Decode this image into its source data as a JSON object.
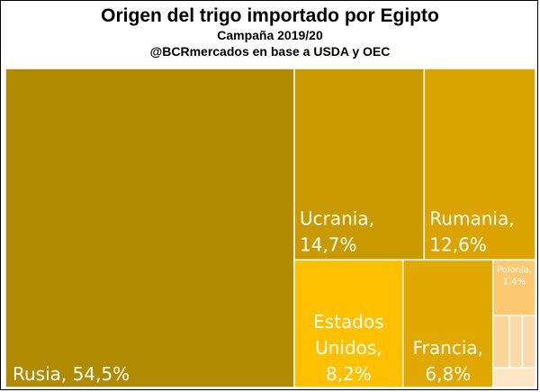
{
  "header": {
    "title": "Origen del trigo importado por Egipto",
    "subtitle": "Campaña 2019/20",
    "source": "@BCRmercados en base a USDA y OEC"
  },
  "chart_data": {
    "type": "treemap",
    "title": "Origen del trigo importado por Egipto",
    "subtitle": "Campaña 2019/20",
    "unit": "%",
    "items": [
      {
        "name": "Rusia",
        "value": 54.5,
        "lines": [
          "Rusia, 54,5%"
        ],
        "color": "#b08a00"
      },
      {
        "name": "Ucrania",
        "value": 14.7,
        "lines": [
          "Ucrania,",
          "14,7%"
        ],
        "color": "#c99a00"
      },
      {
        "name": "Rumania",
        "value": 12.6,
        "lines": [
          "Rumania,",
          "12,6%"
        ],
        "color": "#daa300"
      },
      {
        "name": "Estados Unidos",
        "value": 8.2,
        "lines": [
          "Estados",
          "Unidos,",
          "8,2%"
        ],
        "color": "#ffc000"
      },
      {
        "name": "Francia",
        "value": 6.8,
        "lines": [
          "Francia,",
          "6,8%"
        ],
        "color": "#e0a800"
      },
      {
        "name": "Polonia",
        "value": 1.4,
        "lines": [
          "Polonia,",
          "1,4%"
        ],
        "color": "#fcc870"
      },
      {
        "name": "",
        "value": 0.5,
        "lines": [],
        "color": "#fbd498"
      },
      {
        "name": "",
        "value": 0.4,
        "lines": [],
        "color": "#fcd9a6"
      },
      {
        "name": "",
        "value": 0.4,
        "lines": [],
        "color": "#fbd9a8"
      },
      {
        "name": "",
        "value": 0.5,
        "lines": [],
        "color": "#fde6c4"
      }
    ]
  }
}
